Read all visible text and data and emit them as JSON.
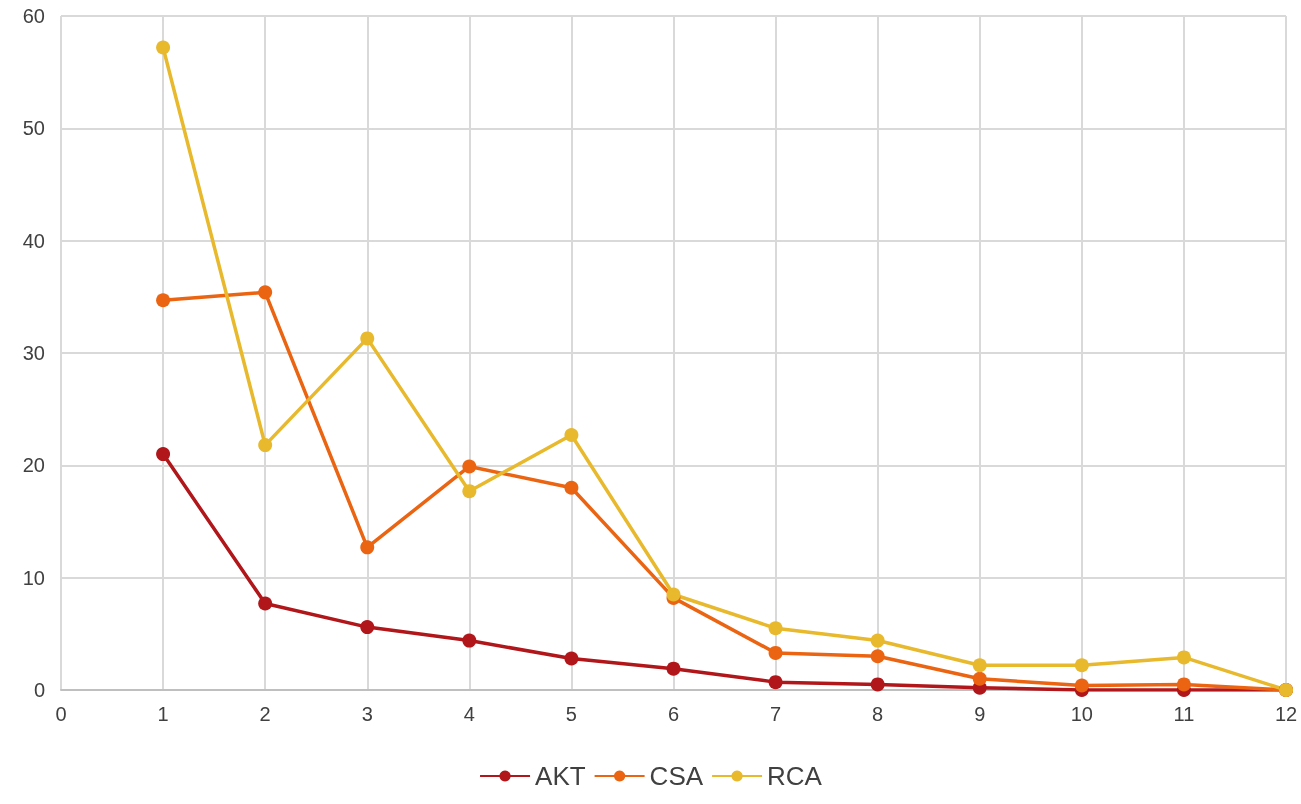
{
  "chart_data": {
    "type": "line",
    "x": [
      1,
      2,
      3,
      4,
      5,
      6,
      7,
      8,
      9,
      10,
      11,
      12
    ],
    "series": [
      {
        "name": "AKT",
        "color": "#b0161a",
        "values": [
          21.0,
          7.7,
          5.6,
          4.4,
          2.8,
          1.9,
          0.7,
          0.5,
          0.2,
          0,
          0,
          0
        ]
      },
      {
        "name": "CSA",
        "color": "#ea6412",
        "values": [
          34.7,
          35.4,
          12.7,
          19.9,
          18.0,
          8.2,
          3.3,
          3.0,
          1.0,
          0.4,
          0.5,
          0
        ]
      },
      {
        "name": "RCA",
        "color": "#e8b92c",
        "values": [
          57.2,
          21.8,
          31.3,
          17.7,
          22.7,
          8.5,
          5.5,
          4.4,
          2.2,
          2.2,
          2.9,
          0
        ]
      }
    ],
    "xlim": [
      0,
      12
    ],
    "xticks": [
      0,
      1,
      2,
      3,
      4,
      5,
      6,
      7,
      8,
      9,
      10,
      11,
      12
    ],
    "ylim": [
      0,
      60
    ],
    "yticks": [
      0,
      10,
      20,
      30,
      40,
      50,
      60
    ],
    "grid": true,
    "legend": "bottom",
    "marker": "circle",
    "line_style": "solid"
  }
}
